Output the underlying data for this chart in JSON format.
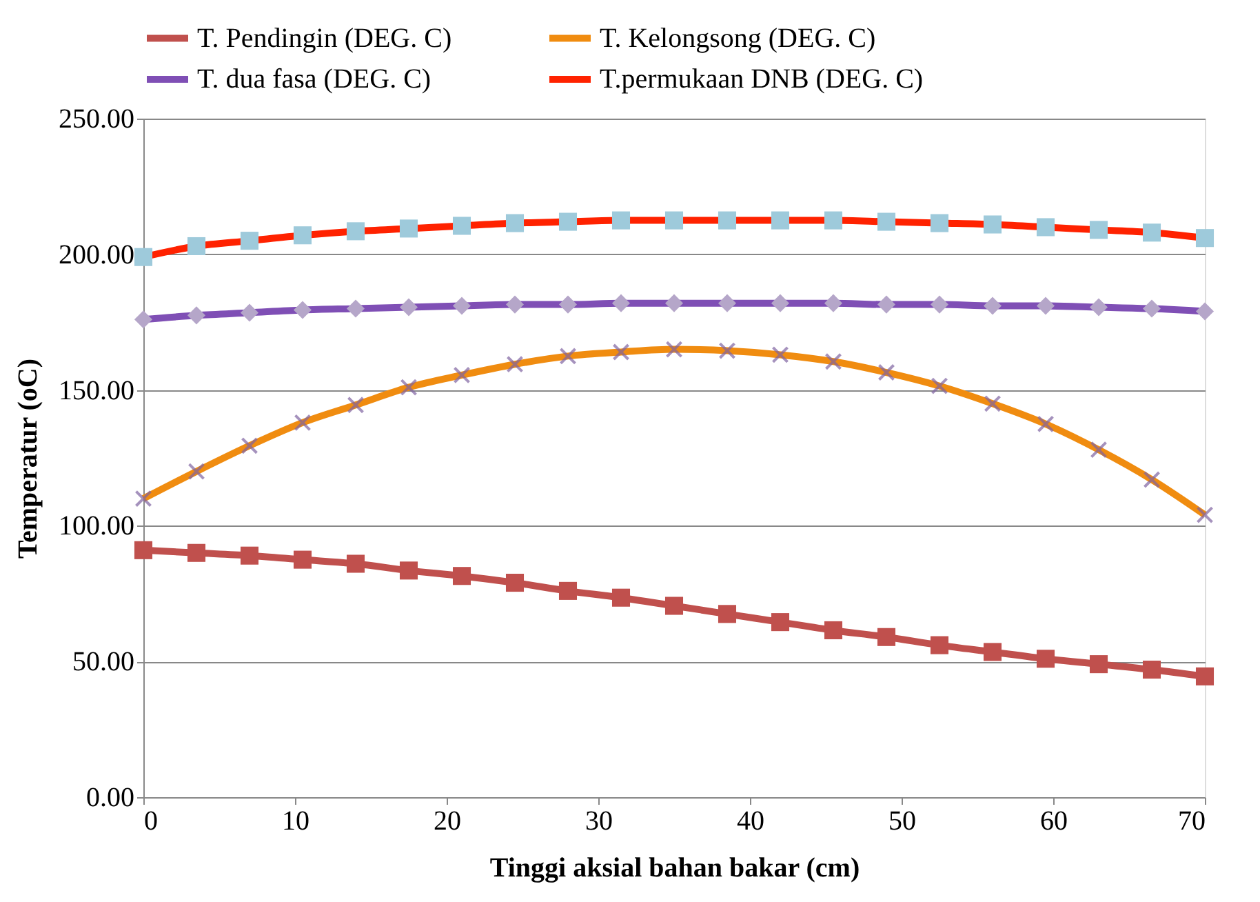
{
  "chart_data": {
    "type": "line",
    "xlabel": "Tinggi aksial bahan bakar (cm)",
    "ylabel": "Temperatur (oC)",
    "x": [
      0,
      3.5,
      7,
      10.5,
      14,
      17.5,
      21,
      24.5,
      28,
      31.5,
      35,
      38.5,
      42,
      45.5,
      49,
      52.5,
      56,
      59.5,
      63,
      66.5,
      70
    ],
    "xlim": [
      0,
      70
    ],
    "xticks": [
      0,
      10,
      20,
      30,
      40,
      50,
      60,
      70
    ],
    "ylim": [
      0,
      250
    ],
    "yticks": [
      {
        "value": 0,
        "label": "0.00"
      },
      {
        "value": 50,
        "label": "50.00"
      },
      {
        "value": 100,
        "label": "100.00"
      },
      {
        "value": 150,
        "label": "150.00"
      },
      {
        "value": 200,
        "label": "200.00"
      },
      {
        "value": 250,
        "label": "250.00"
      }
    ],
    "grid": "y",
    "legend": "top",
    "series": [
      {
        "name": "T. Pendingin (DEG. C)",
        "color": "#c0504d",
        "marker": "square",
        "colors": [
          "#c0504d",
          "#c0504d",
          "#c0504d",
          "#c0504d",
          "#c0504d",
          "#c0504d",
          "#c0504d",
          "#c0504d",
          "#c0504d",
          "#c0504d",
          "#c0504d",
          "#c0504d",
          "#c0504d",
          "#c0504d",
          "#c0504d",
          "#c0504d",
          "#c0504d",
          "#c0504d",
          "#c0504d",
          "#c0504d",
          "#c0504d"
        ],
        "values": [
          91,
          90,
          89,
          87.5,
          86,
          83.5,
          81.5,
          79,
          76,
          73.5,
          70.5,
          67.5,
          64.5,
          61.5,
          59,
          56,
          53.5,
          51,
          49,
          47,
          44.5
        ]
      },
      {
        "name": "T. Kelongsong (DEG. C)",
        "color": "#f08c10",
        "marker": "cross",
        "colors": [
          "#8064a2",
          "#8064a2",
          "#8064a2",
          "#8064a2",
          "#8064a2",
          "#8064a2",
          "#8064a2",
          "#8064a2",
          "#8064a2",
          "#8064a2",
          "#8064a2",
          "#8064a2",
          "#8064a2",
          "#8064a2",
          "#8064a2",
          "#8064a2",
          "#8064a2",
          "#8064a2",
          "#8064a2",
          "#8064a2",
          "#8064a2"
        ],
        "values": [
          110,
          120,
          129.5,
          138,
          144.5,
          151,
          155.5,
          159.5,
          162.5,
          164,
          165,
          164.5,
          163,
          160.5,
          156.5,
          151.5,
          145,
          137.5,
          128,
          117,
          104
        ]
      },
      {
        "name": "T. dua fasa (DEG. C)",
        "color": "#7f4fb5",
        "marker": "diamond",
        "colors": [
          "#b5a6c9",
          "#b5a6c9",
          "#b5a6c9",
          "#b5a6c9",
          "#b5a6c9",
          "#b5a6c9",
          "#b5a6c9",
          "#b5a6c9",
          "#b5a6c9",
          "#b5a6c9",
          "#b5a6c9",
          "#b5a6c9",
          "#b5a6c9",
          "#b5a6c9",
          "#b5a6c9",
          "#b5a6c9",
          "#b5a6c9",
          "#b5a6c9",
          "#b5a6c9",
          "#b5a6c9",
          "#b5a6c9"
        ],
        "values": [
          176,
          177.5,
          178.5,
          179.5,
          180,
          180.5,
          181,
          181.5,
          181.5,
          182,
          182,
          182,
          182,
          182,
          181.5,
          181.5,
          181,
          181,
          180.5,
          180,
          179
        ]
      },
      {
        "name": "T.permukaan DNB (DEG. C)",
        "color": "#ff2200",
        "marker": "square",
        "colors": [
          "#9ecadb",
          "#9ecadb",
          "#9ecadb",
          "#9ecadb",
          "#9ecadb",
          "#9ecadb",
          "#9ecadb",
          "#9ecadb",
          "#9ecadb",
          "#9ecadb",
          "#9ecadb",
          "#9ecadb",
          "#9ecadb",
          "#9ecadb",
          "#9ecadb",
          "#9ecadb",
          "#9ecadb",
          "#9ecadb",
          "#9ecadb",
          "#9ecadb",
          "#9ecadb"
        ],
        "values": [
          199,
          203,
          205,
          207,
          208.5,
          209.5,
          210.5,
          211.5,
          212,
          212.5,
          212.5,
          212.5,
          212.5,
          212.5,
          212,
          211.5,
          211,
          210,
          209,
          208,
          206
        ]
      }
    ]
  }
}
